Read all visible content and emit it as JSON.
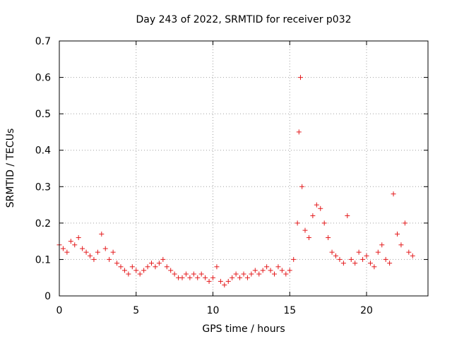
{
  "chart_data": {
    "type": "scatter",
    "title": "Day 243 of 2022, SRMTID for receiver p032",
    "xlabel": "GPS time / hours",
    "ylabel": "SRMTID / TECUs",
    "xlim": [
      0,
      24
    ],
    "ylim": [
      0,
      0.7
    ],
    "xticks": [
      "0",
      "5",
      "10",
      "15",
      "20"
    ],
    "xtick_values": [
      0,
      5,
      10,
      15,
      20
    ],
    "yticks": [
      "0",
      "0.1",
      "0.2",
      "0.3",
      "0.4",
      "0.5",
      "0.6",
      "0.7"
    ],
    "ytick_values": [
      0,
      0.1,
      0.2,
      0.3,
      0.4,
      0.5,
      0.6,
      0.7
    ],
    "grid": true,
    "marker": "+",
    "series": [
      {
        "name": "SRMTID",
        "color": "#e41a1c",
        "x": [
          0,
          0.25,
          0.5,
          0.75,
          1.0,
          1.25,
          1.5,
          1.75,
          2.0,
          2.25,
          2.5,
          2.75,
          3.0,
          3.25,
          3.5,
          3.75,
          4.0,
          4.25,
          4.5,
          4.75,
          5.0,
          5.25,
          5.5,
          5.75,
          6.0,
          6.25,
          6.5,
          6.75,
          7.0,
          7.25,
          7.5,
          7.75,
          8.0,
          8.25,
          8.5,
          8.75,
          9.0,
          9.25,
          9.5,
          9.75,
          10.0,
          10.25,
          10.5,
          10.75,
          11.0,
          11.25,
          11.5,
          11.75,
          12.0,
          12.25,
          12.5,
          12.75,
          13.0,
          13.25,
          13.5,
          13.75,
          14.0,
          14.25,
          14.5,
          14.75,
          15.0,
          15.25,
          15.5,
          15.6,
          15.7,
          15.8,
          16.0,
          16.25,
          16.5,
          16.75,
          17.0,
          17.25,
          17.5,
          17.75,
          18.0,
          18.25,
          18.5,
          18.75,
          19.0,
          19.25,
          19.5,
          19.75,
          20.0,
          20.25,
          20.5,
          20.75,
          21.0,
          21.25,
          21.5,
          21.75,
          22.0,
          22.25,
          22.5,
          22.75,
          23.0
        ],
        "y": [
          0.14,
          0.13,
          0.12,
          0.15,
          0.14,
          0.16,
          0.13,
          0.12,
          0.11,
          0.1,
          0.12,
          0.17,
          0.13,
          0.1,
          0.12,
          0.09,
          0.08,
          0.07,
          0.06,
          0.08,
          0.07,
          0.06,
          0.07,
          0.08,
          0.09,
          0.08,
          0.09,
          0.1,
          0.08,
          0.07,
          0.06,
          0.05,
          0.05,
          0.06,
          0.05,
          0.06,
          0.05,
          0.06,
          0.05,
          0.04,
          0.05,
          0.08,
          0.04,
          0.03,
          0.04,
          0.05,
          0.06,
          0.05,
          0.06,
          0.05,
          0.06,
          0.07,
          0.06,
          0.07,
          0.08,
          0.07,
          0.06,
          0.08,
          0.07,
          0.06,
          0.07,
          0.1,
          0.2,
          0.45,
          0.6,
          0.3,
          0.18,
          0.16,
          0.22,
          0.25,
          0.24,
          0.2,
          0.16,
          0.12,
          0.11,
          0.1,
          0.09,
          0.22,
          0.1,
          0.09,
          0.12,
          0.1,
          0.11,
          0.09,
          0.08,
          0.12,
          0.14,
          0.1,
          0.09,
          0.28,
          0.17,
          0.14,
          0.2,
          0.12,
          0.11
        ]
      }
    ]
  }
}
